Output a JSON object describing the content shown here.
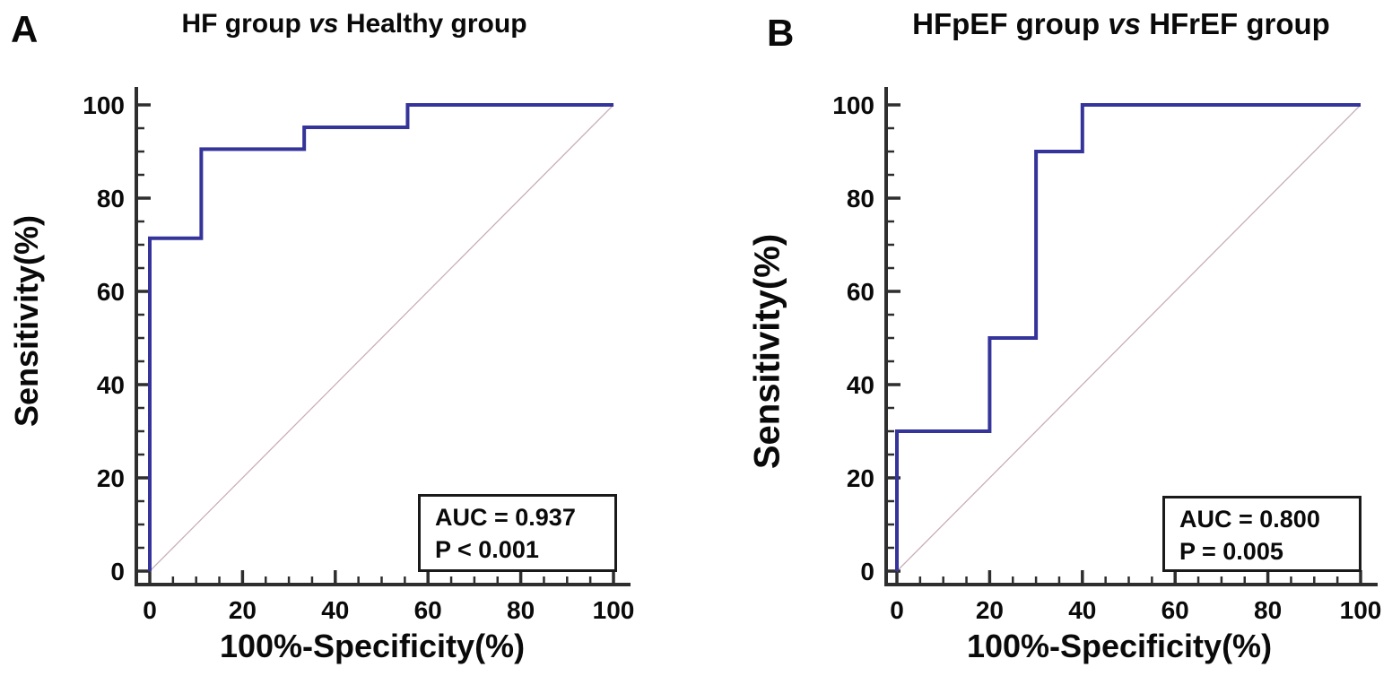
{
  "panels": [
    {
      "label": "A",
      "title_pre": "HF group ",
      "title_vs": "vs",
      "title_post": " Healthy group"
    },
    {
      "label": "B",
      "title_pre": "HFpEF group ",
      "title_vs": "vs",
      "title_post": " HFrEF group"
    }
  ],
  "colors": {
    "axis": "#2e2e2e",
    "text": "#0a0a0a",
    "curve": "#34349a",
    "diagonal": "#c9aeb8"
  },
  "chart_data": [
    {
      "type": "line",
      "subtype": "roc-step",
      "title": "HF group vs Healthy group",
      "xlabel": "100%-Specificity(%)",
      "ylabel": "Sensitivity(%)",
      "xlim": [
        0,
        100
      ],
      "ylim": [
        0,
        100
      ],
      "xticks": [
        0,
        20,
        40,
        60,
        80,
        100
      ],
      "yticks": [
        0,
        20,
        40,
        60,
        80,
        100
      ],
      "minor_tick_step": 5,
      "grid": false,
      "legend": "none",
      "series": [
        {
          "name": "ROC curve",
          "color": "#34349a",
          "points": [
            [
              0,
              0
            ],
            [
              0,
              71.4
            ],
            [
              11.1,
              71.4
            ],
            [
              11.1,
              90.5
            ],
            [
              33.3,
              90.5
            ],
            [
              33.3,
              95.2
            ],
            [
              55.6,
              95.2
            ],
            [
              55.6,
              100
            ],
            [
              100,
              100
            ]
          ]
        },
        {
          "name": "chance diagonal",
          "color": "#c9aeb8",
          "points": [
            [
              0,
              0
            ],
            [
              100,
              100
            ]
          ]
        }
      ],
      "annotations": [
        "AUC = 0.937",
        "P < 0.001"
      ]
    },
    {
      "type": "line",
      "subtype": "roc-step",
      "title": "HFpEF group vs HFrEF group",
      "xlabel": "100%-Specificity(%)",
      "ylabel": "Sensitivity(%)",
      "xlim": [
        0,
        100
      ],
      "ylim": [
        0,
        100
      ],
      "xticks": [
        0,
        20,
        40,
        60,
        80,
        100
      ],
      "yticks": [
        0,
        20,
        40,
        60,
        80,
        100
      ],
      "minor_tick_step": 5,
      "grid": false,
      "legend": "none",
      "series": [
        {
          "name": "ROC curve",
          "color": "#34349a",
          "points": [
            [
              0,
              0
            ],
            [
              0,
              30
            ],
            [
              20,
              30
            ],
            [
              20,
              50
            ],
            [
              30,
              50
            ],
            [
              30,
              90
            ],
            [
              40,
              90
            ],
            [
              40,
              100
            ],
            [
              100,
              100
            ]
          ]
        },
        {
          "name": "chance diagonal",
          "color": "#c9aeb8",
          "points": [
            [
              0,
              0
            ],
            [
              100,
              100
            ]
          ]
        }
      ],
      "annotations": [
        "AUC = 0.800",
        "P = 0.005"
      ]
    }
  ]
}
